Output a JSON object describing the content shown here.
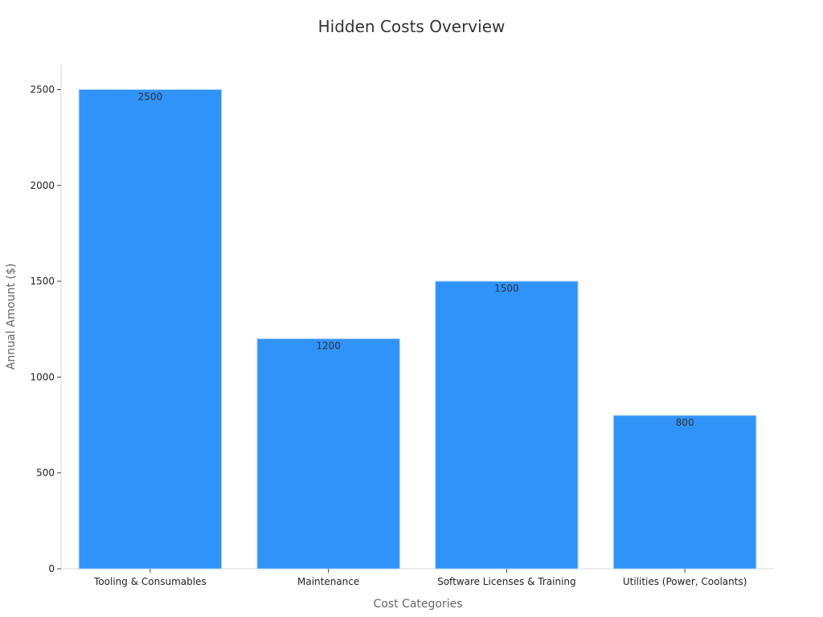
{
  "chart_data": {
    "type": "bar",
    "title": "Hidden Costs Overview",
    "xlabel": "Cost Categories",
    "ylabel": "Annual Amount ($)",
    "categories": [
      "Tooling & Consumables",
      "Maintenance",
      "Software Licenses & Training",
      "Utilities (Power, Coolants)"
    ],
    "values": [
      2500,
      1200,
      1500,
      800
    ],
    "ylim": [
      0,
      2632
    ],
    "yticks": [
      0,
      500,
      1000,
      1500,
      2000,
      2500
    ],
    "grid": false,
    "bar_color": "#2f93f8",
    "data_labels": true
  }
}
